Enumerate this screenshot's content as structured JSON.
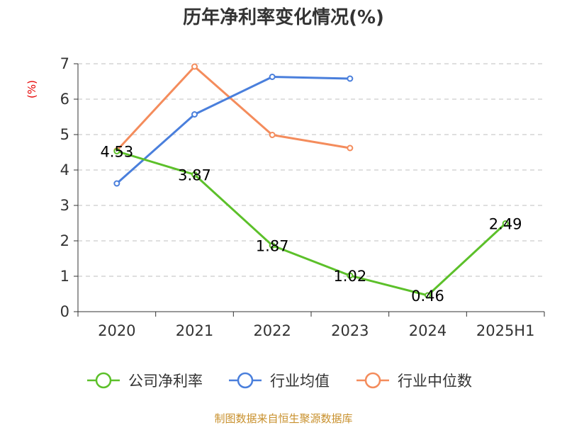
{
  "title": "历年净利率变化情况(%)",
  "source_note": "制图数据来自恒生聚源数据库",
  "chart_data": {
    "type": "line",
    "title": "历年净利率变化情况(%)",
    "ylabel": "(%)",
    "xlabel": "",
    "categories": [
      "2020",
      "2021",
      "2022",
      "2023",
      "2024",
      "2025H1"
    ],
    "ylim": [
      0,
      7
    ],
    "yticks": [
      0,
      1,
      2,
      3,
      4,
      5,
      6,
      7
    ],
    "grid": true,
    "legend_position": "bottom",
    "series": [
      {
        "name": "公司净利率",
        "color": "#5cc02a",
        "values": [
          4.53,
          3.87,
          1.87,
          1.02,
          0.46,
          2.49
        ],
        "labels": [
          "4.53",
          "3.87",
          "1.87",
          "1.02",
          "0.46",
          "2.49"
        ]
      },
      {
        "name": "行业均值",
        "color": "#4a7fdc",
        "values": [
          3.62,
          5.57,
          6.63,
          6.58,
          null,
          null
        ]
      },
      {
        "name": "行业中位数",
        "color": "#f48c5c",
        "values": [
          4.55,
          6.92,
          4.99,
          4.62,
          null,
          null
        ]
      }
    ]
  }
}
